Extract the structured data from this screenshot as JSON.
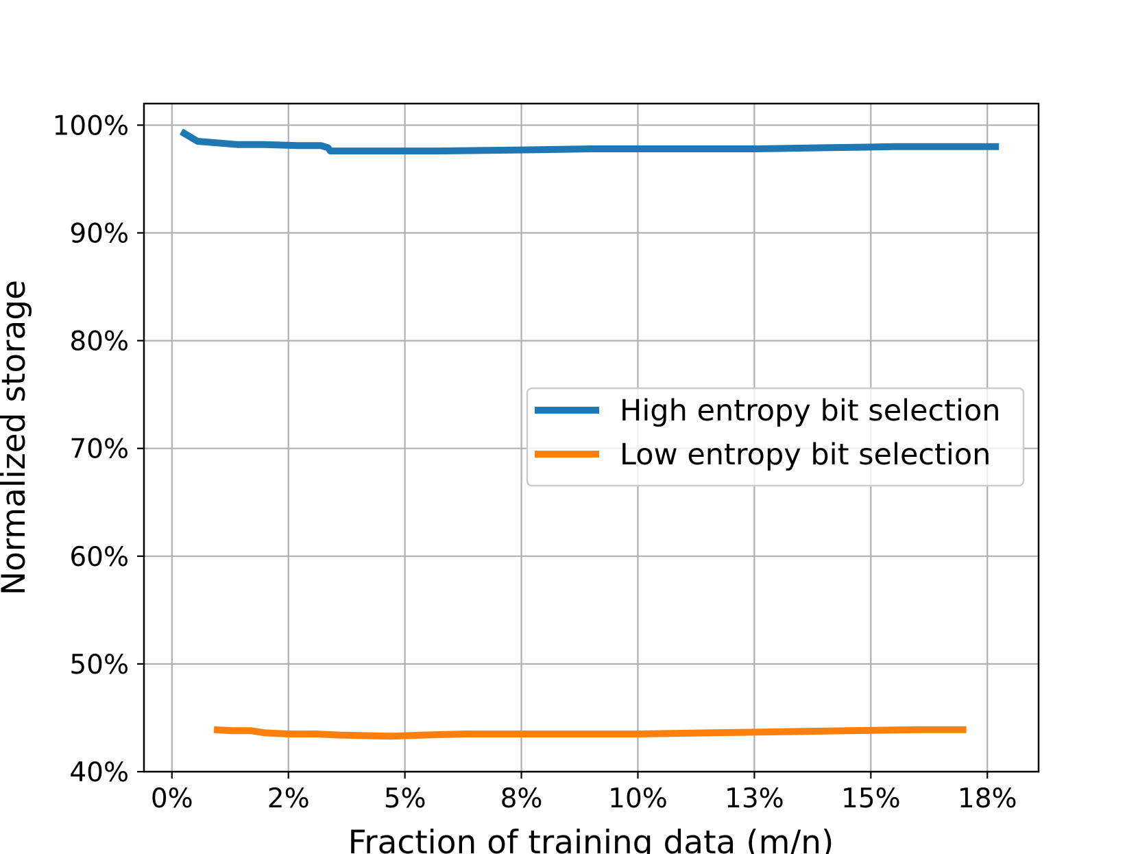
{
  "chart_data": {
    "type": "line",
    "title": "",
    "xlabel": "Fraction of training data (m/n)",
    "ylabel": "Normalized storage",
    "xlim": [
      -0.006,
      0.186
    ],
    "ylim": [
      0.4,
      1.02
    ],
    "xticks": [
      {
        "value": 0.0,
        "label": "0%"
      },
      {
        "value": 0.025,
        "label": "2%"
      },
      {
        "value": 0.05,
        "label": "5%"
      },
      {
        "value": 0.075,
        "label": "8%"
      },
      {
        "value": 0.1,
        "label": "10%"
      },
      {
        "value": 0.125,
        "label": "13%"
      },
      {
        "value": 0.15,
        "label": "15%"
      },
      {
        "value": 0.175,
        "label": "18%"
      }
    ],
    "yticks": [
      {
        "value": 0.4,
        "label": "40%"
      },
      {
        "value": 0.5,
        "label": "50%"
      },
      {
        "value": 0.6,
        "label": "60%"
      },
      {
        "value": 0.7,
        "label": "70%"
      },
      {
        "value": 0.8,
        "label": "80%"
      },
      {
        "value": 0.9,
        "label": "90%"
      },
      {
        "value": 1.0,
        "label": "100%"
      }
    ],
    "grid": true,
    "legend_position": "center-right",
    "series": [
      {
        "name": "High entropy bit selection",
        "color": "#1f77b4",
        "x": [
          0.002,
          0.0055,
          0.014,
          0.02,
          0.027,
          0.03,
          0.032,
          0.0335,
          0.034,
          0.036,
          0.045,
          0.057,
          0.075,
          0.09,
          0.11,
          0.125,
          0.14,
          0.155,
          0.165,
          0.175,
          0.1775
        ],
        "y": [
          0.994,
          0.985,
          0.982,
          0.982,
          0.981,
          0.981,
          0.981,
          0.979,
          0.976,
          0.976,
          0.976,
          0.976,
          0.977,
          0.978,
          0.978,
          0.978,
          0.979,
          0.98,
          0.98,
          0.98,
          0.98
        ]
      },
      {
        "name": "Low entropy bit selection",
        "color": "#ff7f0e",
        "x": [
          0.009,
          0.013,
          0.017,
          0.02,
          0.025,
          0.031,
          0.036,
          0.047,
          0.054,
          0.063,
          0.08,
          0.1,
          0.115,
          0.13,
          0.145,
          0.16,
          0.1705
        ],
        "y": [
          0.439,
          0.438,
          0.438,
          0.436,
          0.435,
          0.435,
          0.434,
          0.433,
          0.434,
          0.435,
          0.435,
          0.435,
          0.436,
          0.437,
          0.438,
          0.439,
          0.439
        ]
      }
    ]
  }
}
